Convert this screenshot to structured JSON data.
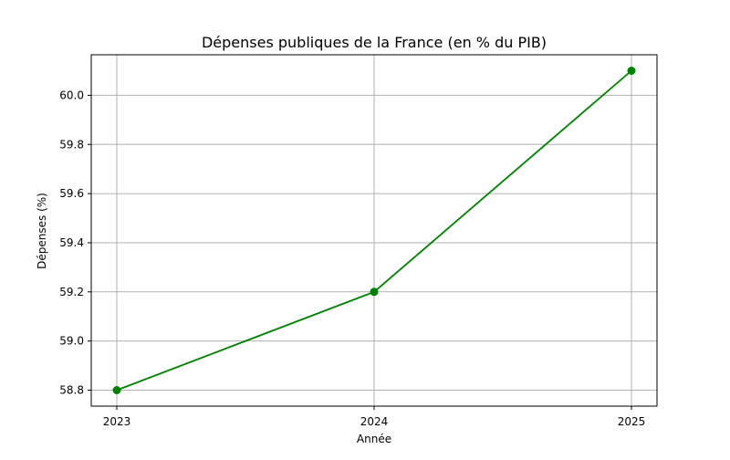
{
  "chart_data": {
    "type": "line",
    "title": "Dépenses publiques de la France (en % du PIB)",
    "xlabel": "Année",
    "ylabel": "Dépenses (%)",
    "x": [
      "2023",
      "2024",
      "2025"
    ],
    "series": [
      {
        "values": [
          58.8,
          59.2,
          60.1
        ],
        "color": "#008000",
        "marker": "circle"
      }
    ],
    "yticks": [
      58.8,
      59.0,
      59.2,
      59.4,
      59.6,
      59.8,
      60.0
    ],
    "ytick_labels": [
      "58.8",
      "59.0",
      "59.2",
      "59.4",
      "59.6",
      "59.8",
      "60.0"
    ],
    "ylim": [
      58.735,
      60.165
    ],
    "grid": true
  }
}
